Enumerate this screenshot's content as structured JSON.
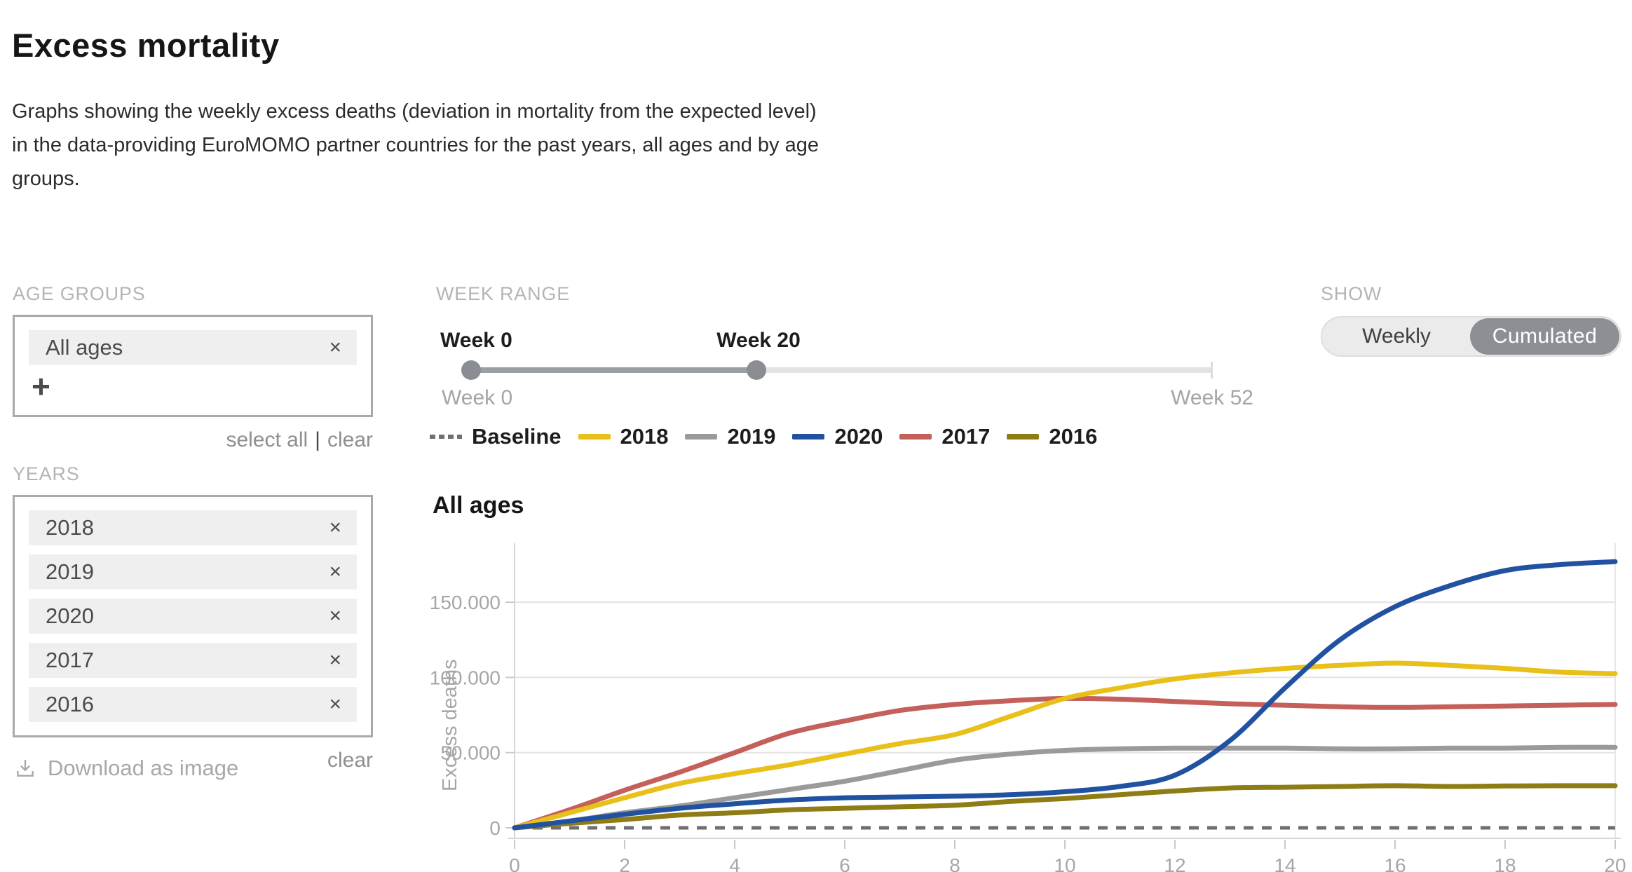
{
  "page": {
    "title": "Excess mortality",
    "description": "Graphs showing the weekly excess deaths (deviation in mortality from the expected level) in the data-providing EuroMOMO partner countries for the past years, all ages and by age groups."
  },
  "controls": {
    "age_groups": {
      "label": "AGE GROUPS",
      "selected": [
        "All ages"
      ],
      "add_button": "+",
      "remove_icon": "×",
      "select_all": "select all",
      "separator": "|",
      "clear": "clear"
    },
    "years": {
      "label": "YEARS",
      "selected": [
        "2018",
        "2019",
        "2020",
        "2017",
        "2016"
      ],
      "remove_icon": "×",
      "clear": "clear"
    },
    "download": {
      "label": "Download as image",
      "icon": "download-icon"
    },
    "week_range": {
      "label": "WEEK RANGE",
      "handle_labels": [
        "Week 0",
        "Week 20"
      ],
      "range_labels": [
        "Week 0",
        "Week 52"
      ],
      "min_week": 0,
      "max_week": 52,
      "selected_range": [
        0,
        20
      ]
    },
    "show": {
      "label": "SHOW",
      "options": [
        "Weekly",
        "Cumulated"
      ],
      "selected": "Cumulated",
      "selected_color": "#8c9095"
    }
  },
  "legend": {
    "items": [
      {
        "label": "Baseline",
        "color": "#6f6f6f",
        "dashed": true
      },
      {
        "label": "2018",
        "color": "#e8c019",
        "dashed": false
      },
      {
        "label": "2019",
        "color": "#9a9a9a",
        "dashed": false
      },
      {
        "label": "2020",
        "color": "#2151a1",
        "dashed": false
      },
      {
        "label": "2017",
        "color": "#c45f5a",
        "dashed": false
      },
      {
        "label": "2016",
        "color": "#8e7c15",
        "dashed": false
      }
    ]
  },
  "chart_data": {
    "type": "line",
    "title": "All ages",
    "xlabel": "",
    "ylabel": "Excess deaths",
    "x": [
      0,
      1,
      2,
      3,
      4,
      5,
      6,
      7,
      8,
      9,
      10,
      11,
      12,
      13,
      14,
      15,
      16,
      17,
      18,
      19,
      20
    ],
    "xlim": [
      0,
      20
    ],
    "ylim": [
      0,
      190000
    ],
    "x_ticks": [
      0,
      2,
      4,
      6,
      8,
      10,
      12,
      14,
      16,
      18,
      20
    ],
    "y_ticks": [
      {
        "value": 0,
        "label": "0"
      },
      {
        "value": 50000,
        "label": "50.000"
      },
      {
        "value": 100000,
        "label": "100.000"
      },
      {
        "value": 150000,
        "label": "150.000"
      }
    ],
    "grid": "horizontal",
    "legend_position": "top-left",
    "baseline": {
      "name": "Baseline",
      "style": "dashed",
      "color": "#6f6f6f",
      "values": [
        0,
        0,
        0,
        0,
        0,
        0,
        0,
        0,
        0,
        0,
        0,
        0,
        0,
        0,
        0,
        0,
        0,
        0,
        0,
        0,
        0
      ]
    },
    "series": [
      {
        "name": "2018",
        "color": "#e8c019",
        "z": 4,
        "values": [
          0,
          10000,
          20000,
          29500,
          36000,
          42000,
          49000,
          56000,
          62000,
          74000,
          86000,
          93000,
          99000,
          103000,
          106000,
          108000,
          109500,
          108000,
          106000,
          103500,
          102500
        ]
      },
      {
        "name": "2019",
        "color": "#9a9a9a",
        "z": 2,
        "values": [
          0,
          4500,
          10000,
          14500,
          20000,
          25500,
          31000,
          38000,
          45000,
          49000,
          51500,
          52500,
          53000,
          53000,
          53000,
          52500,
          52500,
          53000,
          53000,
          53500,
          53500
        ]
      },
      {
        "name": "2020",
        "color": "#2151a1",
        "z": 5,
        "values": [
          0,
          4500,
          9000,
          13000,
          16000,
          18500,
          20000,
          20500,
          21000,
          22000,
          24000,
          27500,
          35000,
          58000,
          93000,
          125000,
          147000,
          161000,
          171000,
          175000,
          177000
        ]
      },
      {
        "name": "2017",
        "color": "#c45f5a",
        "z": 3,
        "values": [
          0,
          12000,
          25000,
          37000,
          50000,
          63000,
          71000,
          78000,
          82000,
          84500,
          86000,
          85500,
          84000,
          82500,
          81500,
          80500,
          80000,
          80500,
          81000,
          81500,
          82000
        ]
      },
      {
        "name": "2016",
        "color": "#8e7c15",
        "z": 1,
        "values": [
          0,
          3000,
          5500,
          8500,
          10000,
          12000,
          13000,
          14000,
          15000,
          17500,
          19500,
          22000,
          24500,
          26500,
          27000,
          27500,
          28000,
          27500,
          27800,
          28000,
          28000
        ]
      }
    ]
  }
}
